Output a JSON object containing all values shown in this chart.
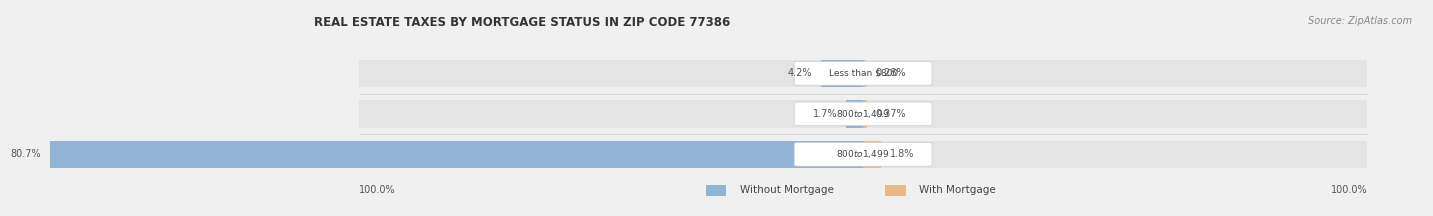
{
  "title": "REAL ESTATE TAXES BY MORTGAGE STATUS IN ZIP CODE 77386",
  "source": "Source: ZipAtlas.com",
  "rows": [
    {
      "label": "Less than $800",
      "without_pct": 4.2,
      "with_pct": 0.28,
      "without_label": "4.2%",
      "with_label": "0.28%"
    },
    {
      "label": "$800 to $1,499",
      "without_pct": 1.7,
      "with_pct": 0.37,
      "without_label": "1.7%",
      "with_label": "0.37%"
    },
    {
      "label": "$800 to $1,499",
      "without_pct": 80.7,
      "with_pct": 1.8,
      "without_label": "80.7%",
      "with_label": "1.8%"
    }
  ],
  "left_axis_label": "100.0%",
  "right_axis_label": "100.0%",
  "legend_without": "Without Mortgage",
  "legend_with": "With Mortgage",
  "color_without": "#92b4d4",
  "color_with": "#e8b88a",
  "bg_color": "#f0f0f0",
  "bar_bg_color": "#e4e4e4",
  "title_color": "#333333",
  "source_color": "#888888"
}
